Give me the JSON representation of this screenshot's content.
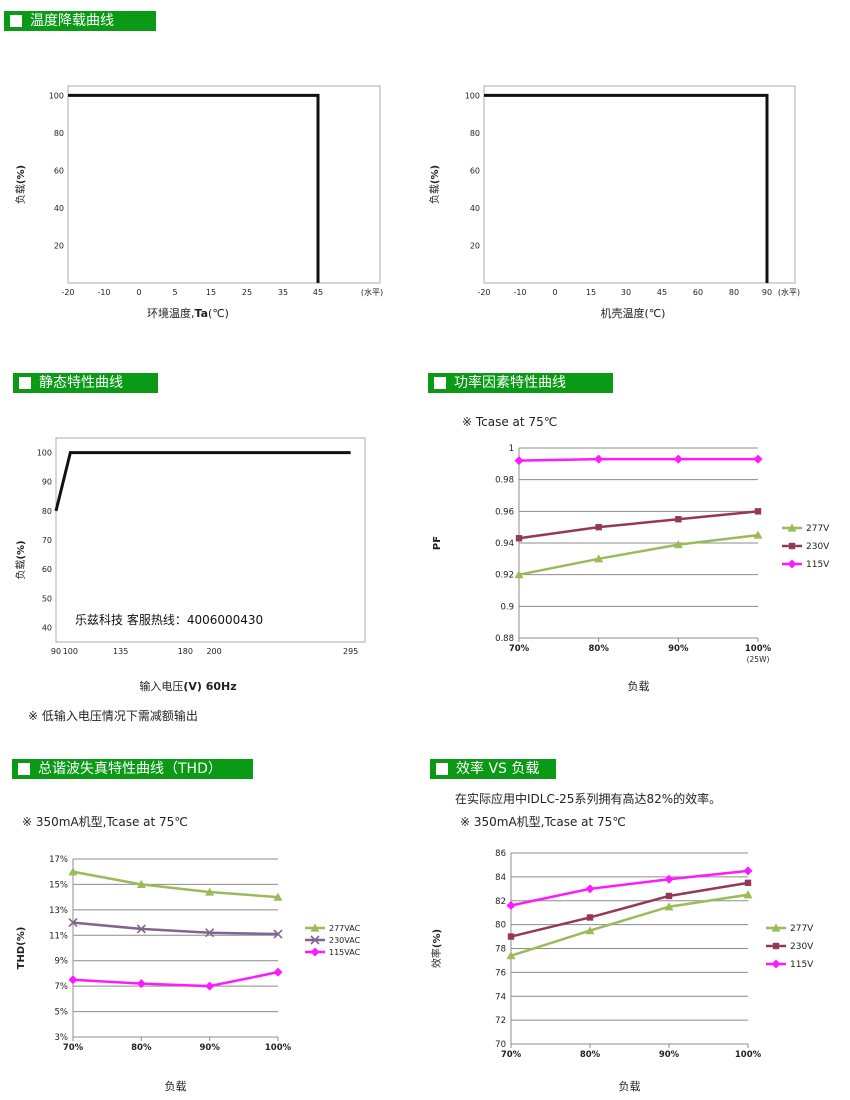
{
  "headers": {
    "derating": "温度降载曲线",
    "static": "静态特性曲线",
    "pf": "功率因素特性曲线",
    "thd": "总谐波失真特性曲线（THD）",
    "eff": "效率 VS 负载"
  },
  "notes": {
    "pf": "※ Tcase at 75℃",
    "static_low": "※ 低输入电压情况下需减额输出",
    "eff_desc": "在实际应用中IDLC-25系列拥有高达82%的效率。",
    "eff_cond": "※ 350mA机型,Tcase at 75℃",
    "thd_cond": "※ 350mA机型,Tcase at 75℃"
  },
  "watermark": "乐兹科技 客服热线：4006000430",
  "chart_data": [
    {
      "id": "ta",
      "type": "line",
      "xlabel_pre": "环境温度,",
      "xlabel_bold": "Ta",
      "xlabel_post": "(℃)",
      "ylabel_pre": "负载",
      "ylabel_bold": "(%)",
      "x_ticks": [
        "-20",
        "-10",
        "0",
        "5",
        "15",
        "25",
        "35",
        "45"
      ],
      "x_unit": "(水平)",
      "y_ticks": [
        "20",
        "40",
        "60",
        "80",
        "100"
      ],
      "ylim": [
        0,
        105
      ],
      "series": [
        {
          "points": [
            [
              "-20",
              100
            ],
            [
              "45",
              100
            ],
            [
              "45",
              0
            ]
          ]
        }
      ]
    },
    {
      "id": "tc",
      "type": "line",
      "xlabel_pre": "机壳温度",
      "xlabel_bold": "",
      "xlabel_post": "(℃)",
      "ylabel_pre": "负载",
      "ylabel_bold": "(%)",
      "x_ticks": [
        "-20",
        "-10",
        "0",
        "15",
        "30",
        "45",
        "60",
        "80",
        "90"
      ],
      "x_unit": "(水平)",
      "y_ticks": [
        "20",
        "40",
        "60",
        "80",
        "100"
      ],
      "ylim": [
        0,
        105
      ],
      "series": [
        {
          "points": [
            [
              "-20",
              100
            ],
            [
              "90",
              100
            ],
            [
              "90",
              0
            ]
          ]
        }
      ]
    },
    {
      "id": "vin",
      "type": "line",
      "xlabel_pre": "输入电压",
      "xlabel_bold": "(V) 60Hz",
      "xlabel_post": "",
      "ylabel_pre": "负载",
      "ylabel_bold": "(%)",
      "x_ticks": [
        "90",
        "100",
        "135",
        "180",
        "200",
        "295"
      ],
      "x": [
        90,
        100,
        135,
        180,
        200,
        295
      ],
      "xlim": [
        90,
        305
      ],
      "y_ticks": [
        "40",
        "50",
        "60",
        "70",
        "80",
        "90",
        "100"
      ],
      "ylim": [
        35,
        105
      ],
      "series": [
        {
          "points": [
            [
              90,
              80
            ],
            [
              100,
              100
            ],
            [
              295,
              100
            ]
          ]
        }
      ]
    },
    {
      "id": "pf",
      "type": "line",
      "categories": [
        "70%",
        "80%",
        "90%",
        "100%"
      ],
      "cat_sub": "(25W)",
      "ylabel": "PF",
      "xlabel": "负载",
      "y_ticks": [
        "0.88",
        "0.9",
        "0.92",
        "0.94",
        "0.96",
        "0.98",
        "1"
      ],
      "ylim": [
        0.88,
        1.0
      ],
      "series": [
        {
          "name": "277V",
          "color": "#9bbb59",
          "marker": "triangle",
          "values": [
            0.92,
            0.93,
            0.939,
            0.945
          ]
        },
        {
          "name": "230V",
          "color": "#953858",
          "marker": "square",
          "values": [
            0.943,
            0.95,
            0.955,
            0.96
          ]
        },
        {
          "name": "115V",
          "color": "#ff19ff",
          "marker": "diamond",
          "values": [
            0.992,
            0.993,
            0.993,
            0.993
          ]
        }
      ]
    },
    {
      "id": "thd",
      "type": "line",
      "categories": [
        "70%",
        "80%",
        "90%",
        "100%"
      ],
      "ylabel": "THD(%)",
      "xlabel": "负载",
      "y_ticks": [
        "3%",
        "5%",
        "7%",
        "9%",
        "11%",
        "13%",
        "15%",
        "17%"
      ],
      "ylim": [
        3,
        17
      ],
      "series": [
        {
          "name": "277VAC",
          "color": "#9bbb59",
          "marker": "triangle",
          "values": [
            16.0,
            15.0,
            14.4,
            14.0
          ]
        },
        {
          "name": "230VAC",
          "color": "#7f6590",
          "marker": "x",
          "values": [
            12.0,
            11.5,
            11.2,
            11.1
          ]
        },
        {
          "name": "115VAC",
          "color": "#ff19ff",
          "marker": "diamond",
          "values": [
            7.5,
            7.2,
            7.0,
            8.1
          ]
        }
      ]
    },
    {
      "id": "eff",
      "type": "line",
      "categories": [
        "70%",
        "80%",
        "90%",
        "100%"
      ],
      "ylabel_pre": "效率",
      "ylabel_bold": "(%)",
      "xlabel": "负载",
      "y_ticks": [
        "70",
        "72",
        "74",
        "76",
        "78",
        "80",
        "82",
        "84",
        "86"
      ],
      "ylim": [
        70,
        86
      ],
      "series": [
        {
          "name": "277V",
          "color": "#9bbb59",
          "marker": "triangle",
          "values": [
            77.4,
            79.5,
            81.5,
            82.5
          ]
        },
        {
          "name": "230V",
          "color": "#953858",
          "marker": "square",
          "values": [
            79.0,
            80.6,
            82.4,
            83.5
          ]
        },
        {
          "name": "115V",
          "color": "#ff19ff",
          "marker": "diamond",
          "values": [
            81.6,
            83.0,
            83.8,
            84.5
          ]
        }
      ]
    }
  ]
}
